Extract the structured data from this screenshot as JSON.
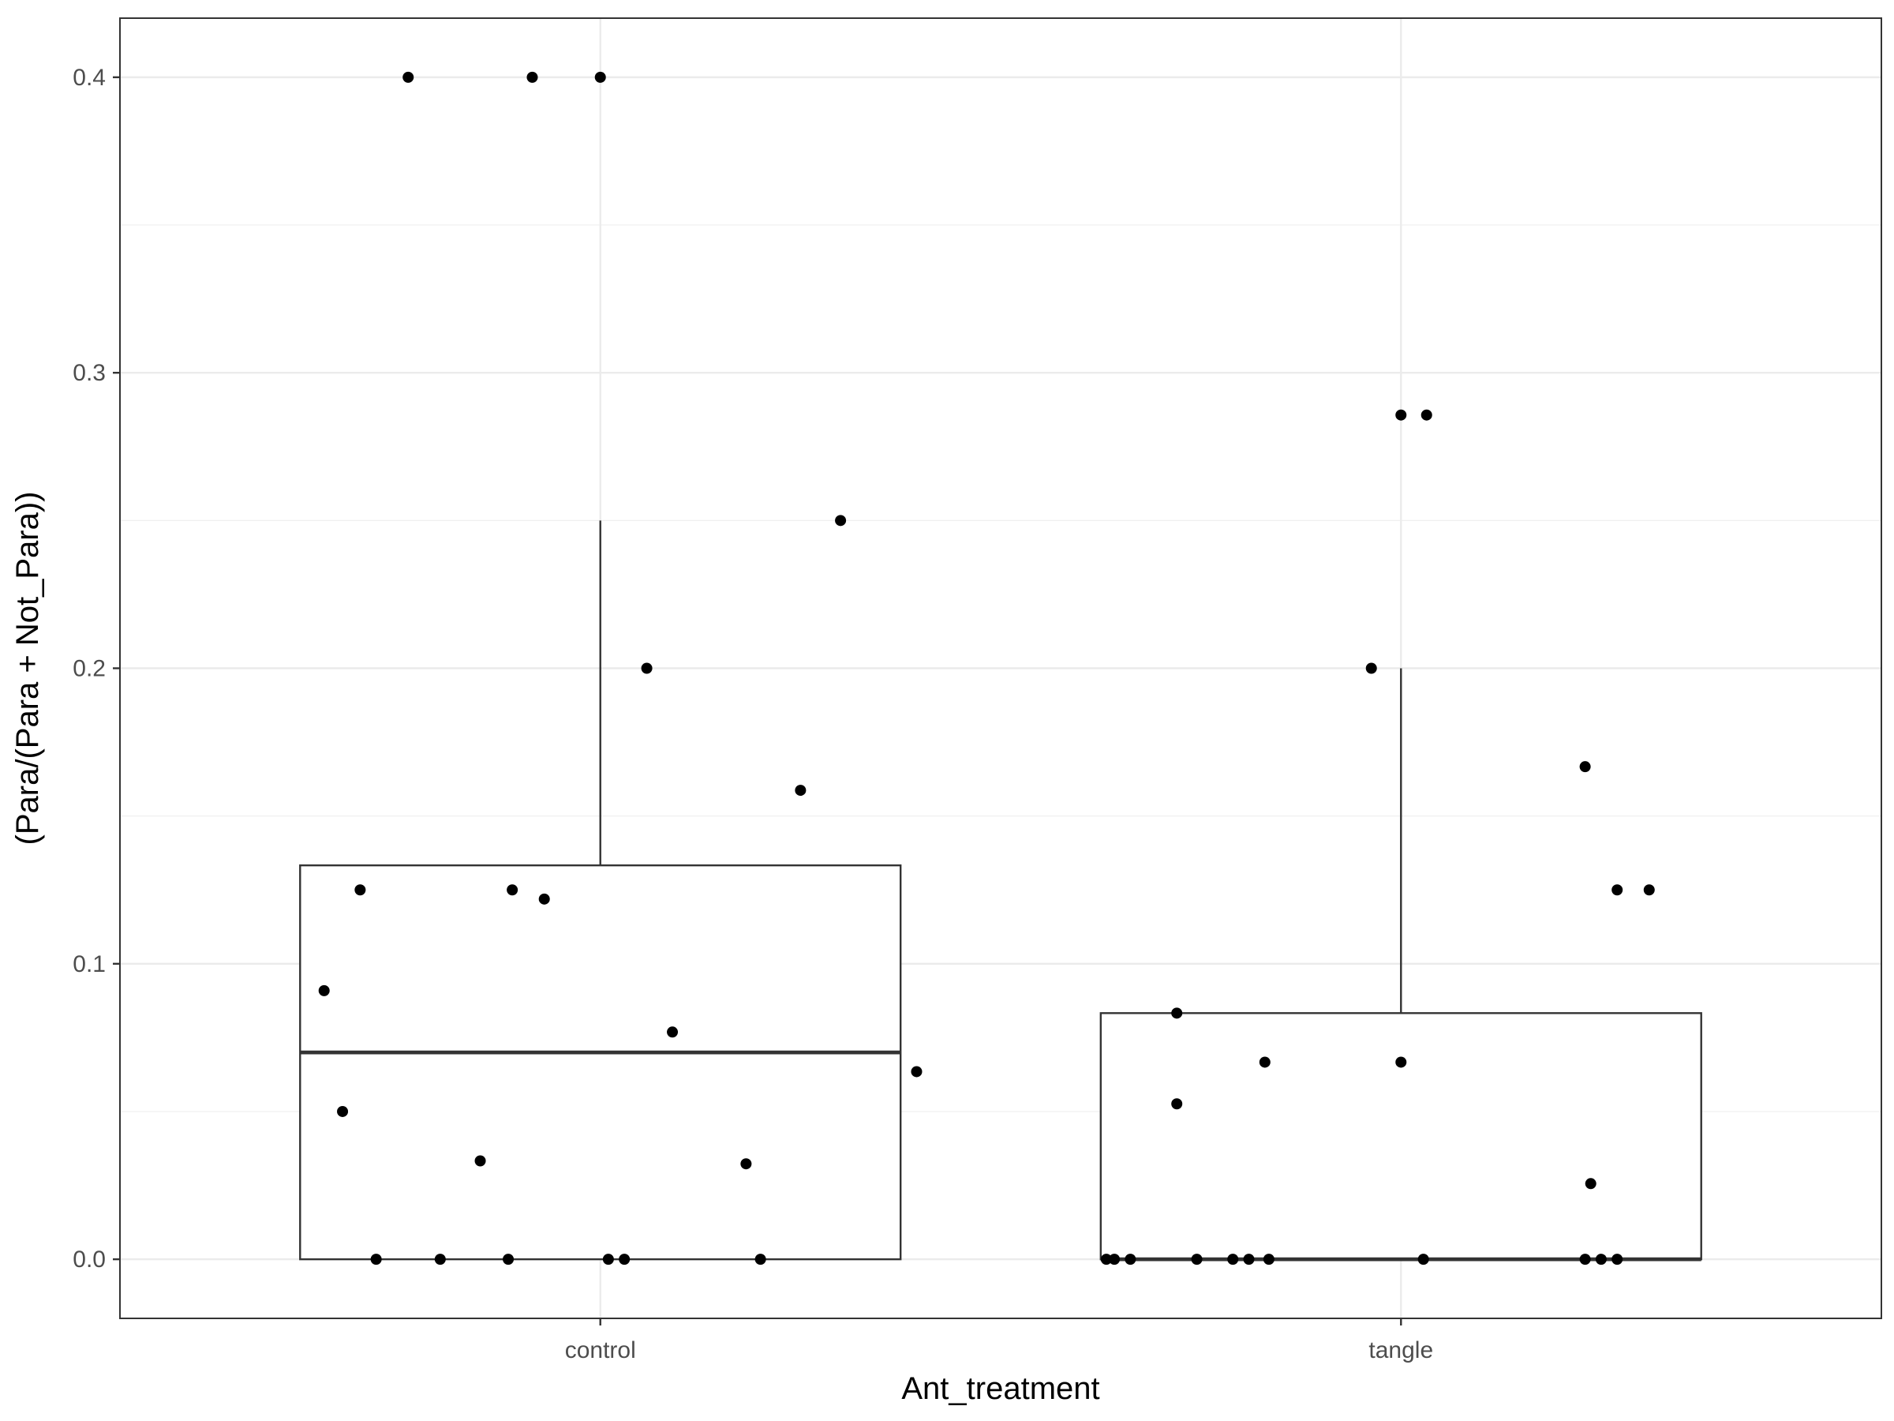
{
  "chart_data": {
    "type": "boxplot",
    "xlabel": "Ant_treatment",
    "ylabel": "(Para/(Para + Not_Para))",
    "categories": [
      "control",
      "tangle"
    ],
    "ylim": [
      -0.02,
      0.42
    ],
    "yticks": [
      0.0,
      0.1,
      0.2,
      0.3,
      0.4
    ],
    "ytick_labels": [
      "0.0",
      "0.1",
      "0.2",
      "0.3",
      "0.4"
    ],
    "grid": true,
    "boxes": [
      {
        "category": "control",
        "q1": 0.0,
        "median": 0.07,
        "q3": 0.1333,
        "whisker_low": 0.0,
        "whisker_high": 0.25
      },
      {
        "category": "tangle",
        "q1": 0.0,
        "median": 0.0,
        "q3": 0.0833,
        "whisker_low": 0.0,
        "whisker_high": 0.2
      }
    ],
    "points": [
      {
        "x": 0.76,
        "y": 0.4
      },
      {
        "x": 0.915,
        "y": 0.4
      },
      {
        "x": 1.0,
        "y": 0.4
      },
      {
        "x": 1.3,
        "y": 0.25
      },
      {
        "x": 1.058,
        "y": 0.2
      },
      {
        "x": 1.25,
        "y": 0.1587
      },
      {
        "x": 0.7,
        "y": 0.125
      },
      {
        "x": 0.89,
        "y": 0.125
      },
      {
        "x": 0.93,
        "y": 0.1219
      },
      {
        "x": 0.655,
        "y": 0.0909
      },
      {
        "x": 1.09,
        "y": 0.0769
      },
      {
        "x": 1.395,
        "y": 0.0635
      },
      {
        "x": 0.678,
        "y": 0.05
      },
      {
        "x": 0.85,
        "y": 0.0333
      },
      {
        "x": 1.182,
        "y": 0.0323
      },
      {
        "x": 0.72,
        "y": 0.0
      },
      {
        "x": 0.8,
        "y": 0.0
      },
      {
        "x": 0.885,
        "y": 0.0
      },
      {
        "x": 1.01,
        "y": 0.0
      },
      {
        "x": 1.03,
        "y": 0.0
      },
      {
        "x": 1.2,
        "y": 0.0
      },
      {
        "x": 2.0,
        "y": 0.2857
      },
      {
        "x": 2.032,
        "y": 0.2857
      },
      {
        "x": 1.963,
        "y": 0.2
      },
      {
        "x": 2.23,
        "y": 0.1667
      },
      {
        "x": 2.27,
        "y": 0.125
      },
      {
        "x": 2.31,
        "y": 0.125
      },
      {
        "x": 1.72,
        "y": 0.0833
      },
      {
        "x": 1.72,
        "y": 0.0526
      },
      {
        "x": 1.83,
        "y": 0.0667
      },
      {
        "x": 2.0,
        "y": 0.0667
      },
      {
        "x": 2.237,
        "y": 0.0256
      },
      {
        "x": 1.632,
        "y": 0.0
      },
      {
        "x": 1.642,
        "y": 0.0
      },
      {
        "x": 1.662,
        "y": 0.0
      },
      {
        "x": 1.745,
        "y": 0.0
      },
      {
        "x": 1.79,
        "y": 0.0
      },
      {
        "x": 1.81,
        "y": 0.0
      },
      {
        "x": 1.835,
        "y": 0.0
      },
      {
        "x": 2.028,
        "y": 0.0
      },
      {
        "x": 2.23,
        "y": 0.0
      },
      {
        "x": 2.25,
        "y": 0.0
      },
      {
        "x": 2.27,
        "y": 0.0
      }
    ]
  }
}
